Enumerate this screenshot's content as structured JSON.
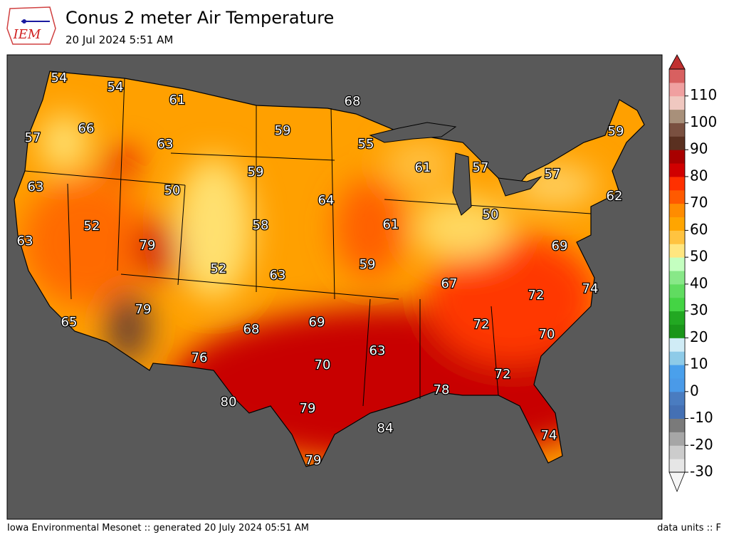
{
  "header": {
    "logo": "IEM",
    "title": "Conus 2 meter Air Temperature",
    "subtitle": "20 Jul 2024 5:51 AM"
  },
  "map": {
    "labels": [
      54,
      54,
      61,
      68,
      66,
      59,
      55,
      59,
      57,
      63,
      59,
      61,
      57,
      57,
      50,
      64,
      62,
      63,
      52,
      58,
      61,
      50,
      79,
      63,
      69,
      52,
      63,
      59,
      67,
      72,
      74,
      79,
      69,
      72,
      65,
      68,
      70,
      63,
      76,
      70,
      72,
      78,
      80,
      79,
      84,
      74,
      79
    ]
  },
  "colorbar": {
    "ylim": [
      -30,
      120
    ],
    "yticks": [
      -30,
      -20,
      -10,
      0,
      10,
      20,
      30,
      40,
      50,
      60,
      70,
      80,
      90,
      100,
      110
    ],
    "colors": [
      "#e6e6e6",
      "#cccccc",
      "#a6a6a6",
      "#7a7a7a",
      "#4470b4",
      "#4a7cc0",
      "#4a9ae8",
      "#4aa0ec",
      "#8ecbe8",
      "#d0ecf6",
      "#1a961a",
      "#22a822",
      "#44d444",
      "#60dc60",
      "#88e888",
      "#c4ffc0",
      "#ffe680",
      "#ffc340",
      "#ffa500",
      "#ff8c00",
      "#ff5a00",
      "#ff3000",
      "#d00000",
      "#a80000",
      "#5a3020",
      "#7a5040",
      "#a8907a",
      "#f0c8c0",
      "#f0a0a0",
      "#d86060"
    ],
    "under_color": "#f5f5f5",
    "over_color": "#c03030"
  },
  "footer": {
    "left": "Iowa Environmental Mesonet :: generated 20 July 2024 05:51 AM",
    "right": "data units :: F"
  }
}
